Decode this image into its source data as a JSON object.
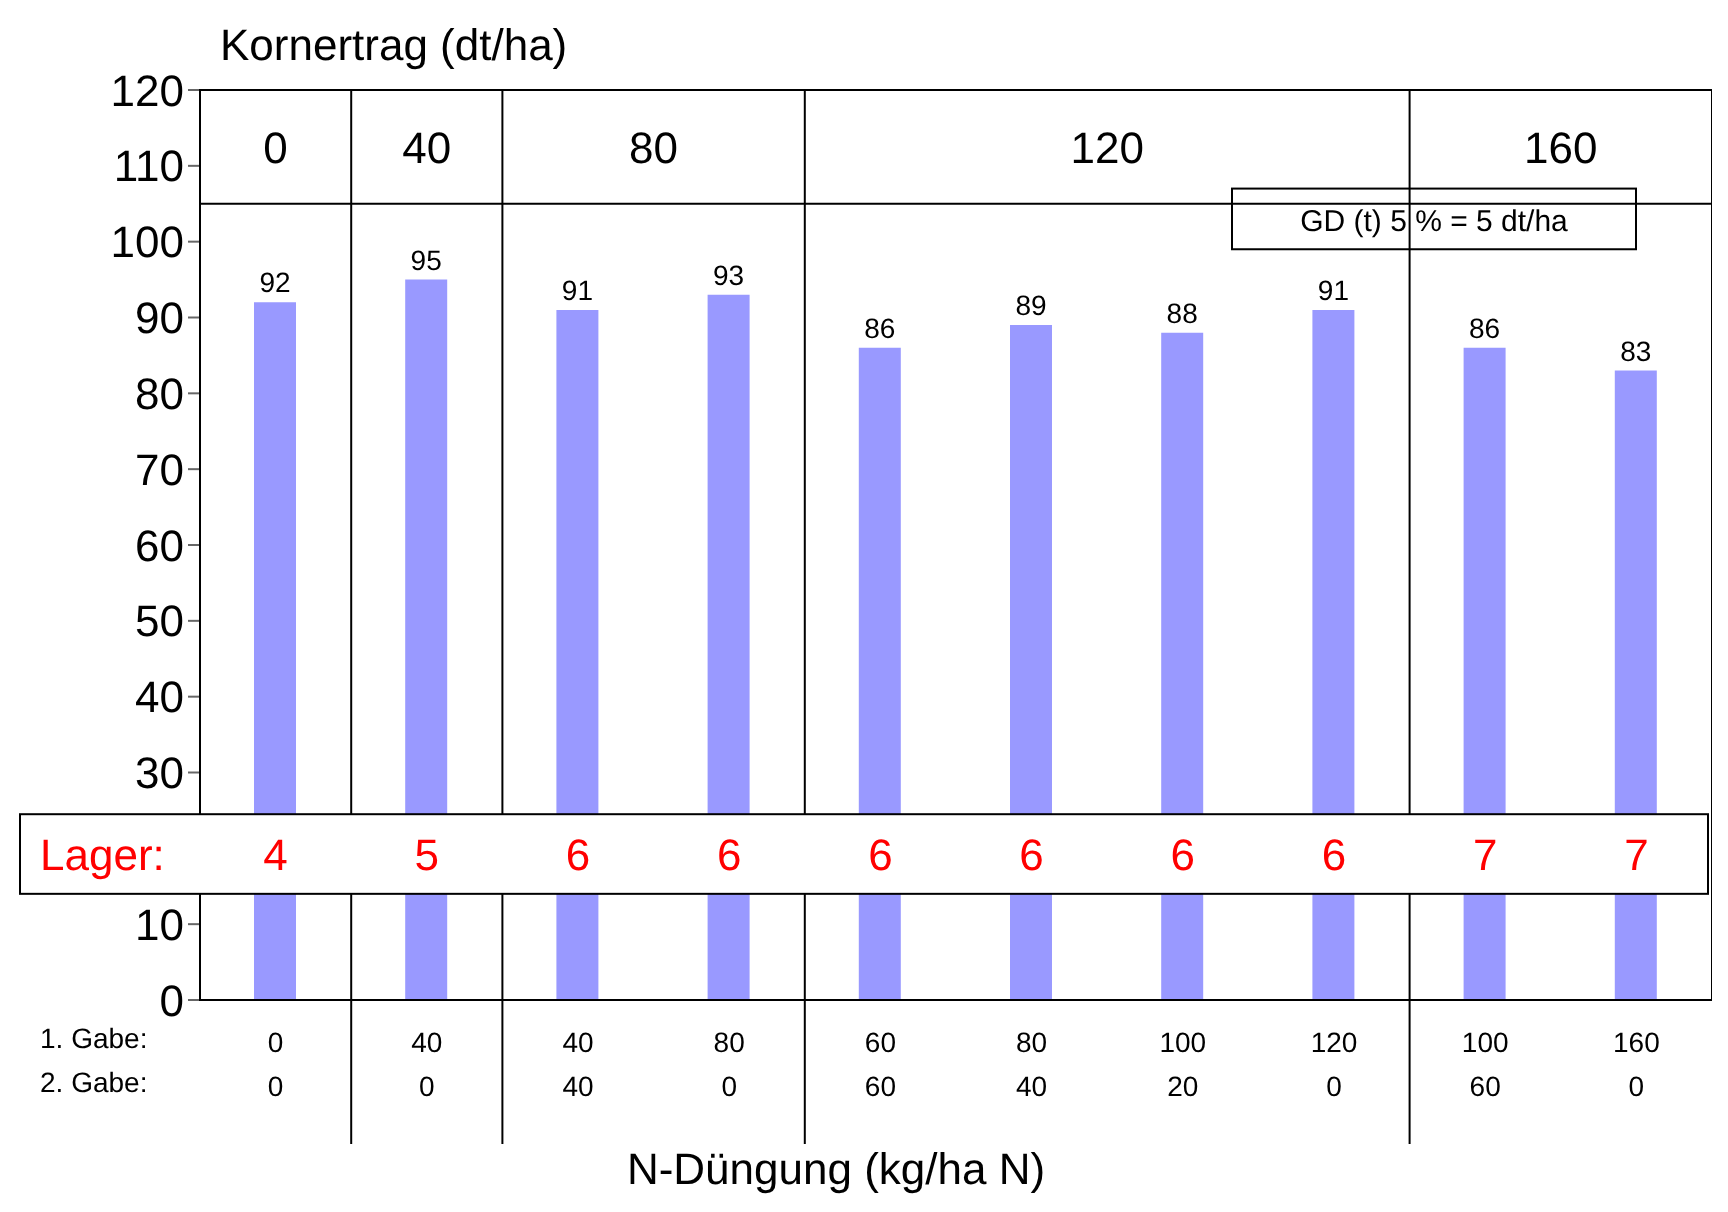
{
  "chart_data": {
    "type": "bar",
    "ylabel": "Kornertrag (dt/ha)",
    "xlabel": "N-Düngung (kg/ha N)",
    "categories": [
      "0\n0",
      "40\n0",
      "40\n40",
      "80\n0",
      "60\n60",
      "80\n40",
      "100\n20",
      "120\n0",
      "100\n60",
      "160\n0"
    ],
    "values": [
      92,
      95,
      91,
      93,
      86,
      89,
      88,
      91,
      86,
      83
    ],
    "color": "#9999ff",
    "ylim": [
      0,
      120
    ],
    "yticks": [
      0,
      10,
      {
        "value": 20,
        "label": null
      },
      30,
      40,
      50,
      60,
      70,
      80,
      90,
      100,
      110,
      120
    ],
    "data_labels": true,
    "grid": false,
    "legend": false,
    "annotations": [
      "0",
      "40",
      "80",
      "120",
      "160",
      "GD (t) 5 % = 5 dt/ha",
      "Lager:",
      "4",
      "5",
      "6",
      "6",
      "6",
      "6",
      "6",
      "6",
      "7",
      "7",
      "1. Gabe:",
      "2. Gabe:"
    ]
  }
}
